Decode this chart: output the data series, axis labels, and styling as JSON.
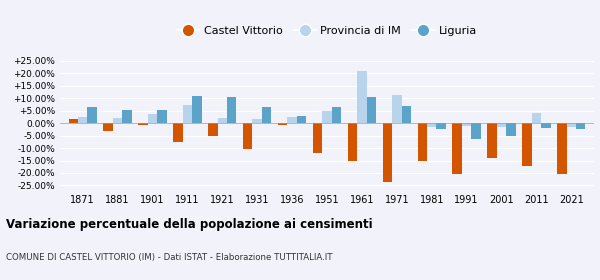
{
  "years": [
    1871,
    1881,
    1901,
    1911,
    1921,
    1931,
    1936,
    1951,
    1961,
    1971,
    1981,
    1991,
    2001,
    2011,
    2021
  ],
  "castel_vittorio": [
    1.5,
    -3.0,
    -0.8,
    -7.5,
    -5.0,
    -10.5,
    -0.8,
    -12.0,
    -15.0,
    -23.5,
    -15.0,
    -20.5,
    -14.0,
    -17.0,
    -20.5
  ],
  "provincia_im": [
    2.5,
    2.0,
    3.5,
    7.5,
    2.0,
    1.5,
    2.5,
    5.0,
    21.0,
    11.5,
    -1.5,
    -1.0,
    -1.5,
    4.0,
    -1.5
  ],
  "liguria": [
    6.5,
    5.5,
    5.5,
    11.0,
    10.5,
    6.5,
    3.0,
    6.5,
    10.5,
    7.0,
    -2.5,
    -6.5,
    -5.0,
    -2.0,
    -2.5
  ],
  "color_castel": "#d45500",
  "color_provincia": "#b8d4ed",
  "color_liguria": "#5ba3c9",
  "title": "Variazione percentuale della popolazione ai censimenti",
  "subtitle": "COMUNE DI CASTEL VITTORIO (IM) - Dati ISTAT - Elaborazione TUTTITALIA.IT",
  "legend_labels": [
    "Castel Vittorio",
    "Provincia di IM",
    "Liguria"
  ],
  "ylim_min": -27,
  "ylim_max": 27,
  "yticks": [
    -25,
    -20,
    -15,
    -10,
    -5,
    0,
    5,
    10,
    15,
    20,
    25
  ],
  "bg_color": "#f2f2fa"
}
